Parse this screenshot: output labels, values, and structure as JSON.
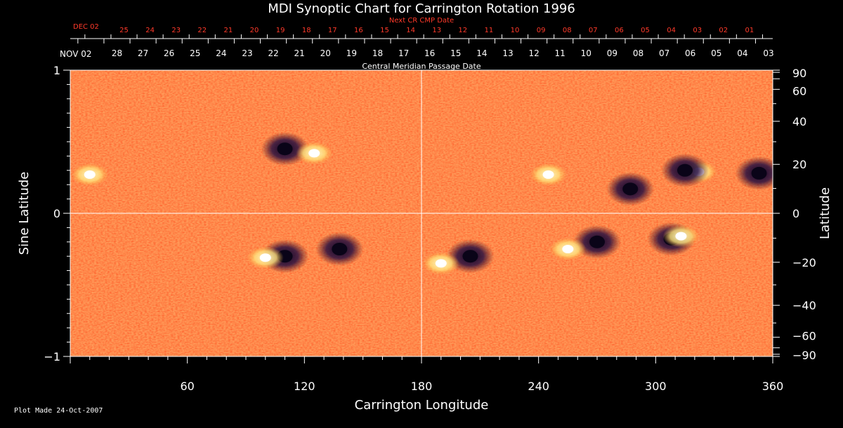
{
  "chart_data": {
    "type": "heatmap",
    "title": "MDI Synoptic Chart for Carrington Rotation 1996",
    "xlabel": "Carrington Longitude",
    "ylabel_left": "Sine Latitude",
    "ylabel_right": "Latitude",
    "xlim": [
      0,
      360
    ],
    "ylim": [
      -1,
      1
    ],
    "x_ticks": [
      "60",
      "120",
      "180",
      "240",
      "300",
      "360"
    ],
    "y_ticks_left": [
      "1",
      "0",
      "−1"
    ],
    "y_ticks_right": [
      "90",
      "60",
      "40",
      "20",
      "0",
      "−20",
      "−40",
      "−60",
      "−90"
    ],
    "crosshair": {
      "x": 180,
      "y": 0
    },
    "top_axis": {
      "label": "Central Meridian Passage Date",
      "start_label": "NOV 02",
      "dates": [
        "28",
        "27",
        "26",
        "25",
        "24",
        "23",
        "22",
        "21",
        "20",
        "19",
        "18",
        "17",
        "16",
        "15",
        "14",
        "13",
        "12",
        "11",
        "10",
        "09",
        "08",
        "07",
        "06",
        "05",
        "04",
        "03"
      ]
    },
    "next_axis": {
      "label": "Next CR CMP Date",
      "start_label": "DEC 02",
      "dates": [
        "25",
        "24",
        "23",
        "22",
        "21",
        "20",
        "19",
        "18",
        "17",
        "16",
        "15",
        "14",
        "13",
        "12",
        "11",
        "10",
        "09",
        "08",
        "07",
        "06",
        "05",
        "04",
        "03",
        "02",
        "01"
      ]
    },
    "features": [
      {
        "lon": 110,
        "lat": 0.45,
        "polarity": "negative"
      },
      {
        "lon": 125,
        "lat": 0.42,
        "polarity": "positive"
      },
      {
        "lon": 110,
        "lat": -0.3,
        "polarity": "negative"
      },
      {
        "lon": 100,
        "lat": -0.31,
        "polarity": "positive"
      },
      {
        "lon": 138,
        "lat": -0.25,
        "polarity": "negative"
      },
      {
        "lon": 205,
        "lat": -0.3,
        "polarity": "negative"
      },
      {
        "lon": 190,
        "lat": -0.35,
        "polarity": "positive"
      },
      {
        "lon": 270,
        "lat": -0.2,
        "polarity": "negative"
      },
      {
        "lon": 255,
        "lat": -0.25,
        "polarity": "positive"
      },
      {
        "lon": 308,
        "lat": -0.18,
        "polarity": "negative"
      },
      {
        "lon": 313,
        "lat": -0.16,
        "polarity": "positive"
      },
      {
        "lon": 322,
        "lat": 0.29,
        "polarity": "positive"
      },
      {
        "lon": 315,
        "lat": 0.3,
        "polarity": "negative"
      },
      {
        "lon": 353,
        "lat": 0.28,
        "polarity": "negative"
      },
      {
        "lon": 287,
        "lat": 0.17,
        "polarity": "negative"
      },
      {
        "lon": 10,
        "lat": 0.27,
        "polarity": "positive"
      },
      {
        "lon": 245,
        "lat": 0.27,
        "polarity": "positive"
      }
    ],
    "colors": {
      "background": "#ff4a10",
      "positive": "#fff6c0",
      "negative": "#140a3a",
      "frame": "#ffffff"
    }
  },
  "footer": "Plot Made 24-Oct-2007"
}
